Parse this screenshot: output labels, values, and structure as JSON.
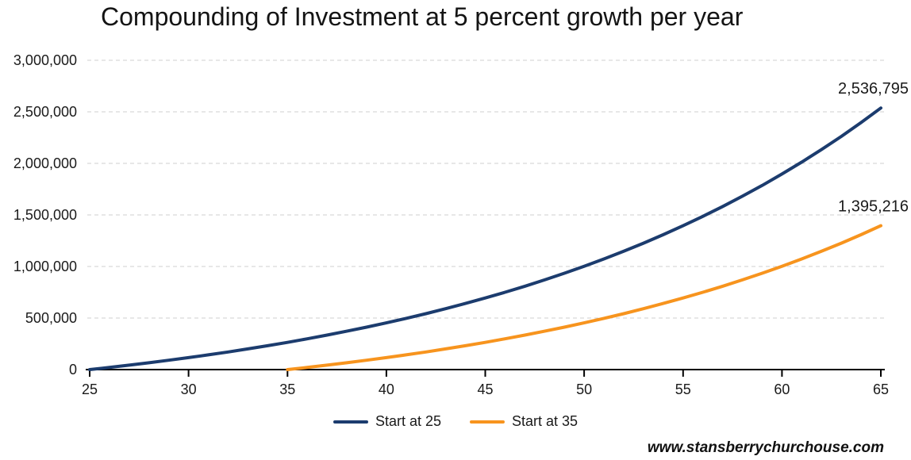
{
  "title": "Compounding of Investment at 5 percent growth per year",
  "watermark": "www.stansberrychurchouse.com",
  "colors": {
    "series1": "#1c3c6e",
    "series2": "#f7941e",
    "grid": "#cfcfcf",
    "axis": "#000000",
    "text": "#1a1a1a"
  },
  "chart_data": {
    "type": "line",
    "title": "Compounding of Investment at 5 percent growth per year",
    "xlabel": "",
    "ylabel": "",
    "xlim": [
      25,
      65
    ],
    "ylim": [
      0,
      3000000
    ],
    "x_ticks": [
      25,
      30,
      35,
      40,
      45,
      50,
      55,
      60,
      65
    ],
    "y_ticks": [
      0,
      500000,
      1000000,
      1500000,
      2000000,
      2500000,
      3000000
    ],
    "y_tick_labels": [
      "0",
      "500,000",
      "1,000,000",
      "1,500,000",
      "2,000,000",
      "2,500,000",
      "3,000,000"
    ],
    "grid": "horizontal-dashed",
    "legend_position": "bottom-center",
    "series": [
      {
        "name": "Start at 25",
        "color": "#1c3c6e",
        "start_x": 25,
        "step": 1,
        "end_label": "2,536,795",
        "values": [
          0,
          21000,
          43050,
          66203,
          90513,
          116038,
          142840,
          170982,
          200531,
          231558,
          264136,
          298343,
          334260,
          371973,
          411571,
          453150,
          496807,
          542648,
          590780,
          641319,
          694385,
          750104,
          808610,
          870040,
          934542,
          1002269,
          1073383,
          1148052,
          1226454,
          1308777,
          1395216,
          1485977,
          1581275,
          1681339,
          1786406,
          1896726,
          2012563,
          2134191,
          2261900,
          2395995,
          2536795
        ]
      },
      {
        "name": "Start at 35",
        "color": "#f7941e",
        "start_x": 35,
        "step": 1,
        "end_label": "1,395,216",
        "values": [
          0,
          21000,
          43050,
          66203,
          90513,
          116038,
          142840,
          170982,
          200531,
          231558,
          264136,
          298343,
          334260,
          371973,
          411571,
          453150,
          496807,
          542648,
          590780,
          641319,
          694385,
          750104,
          808610,
          870040,
          934542,
          1002269,
          1073383,
          1148052,
          1226454,
          1308777,
          1395216
        ]
      }
    ]
  }
}
